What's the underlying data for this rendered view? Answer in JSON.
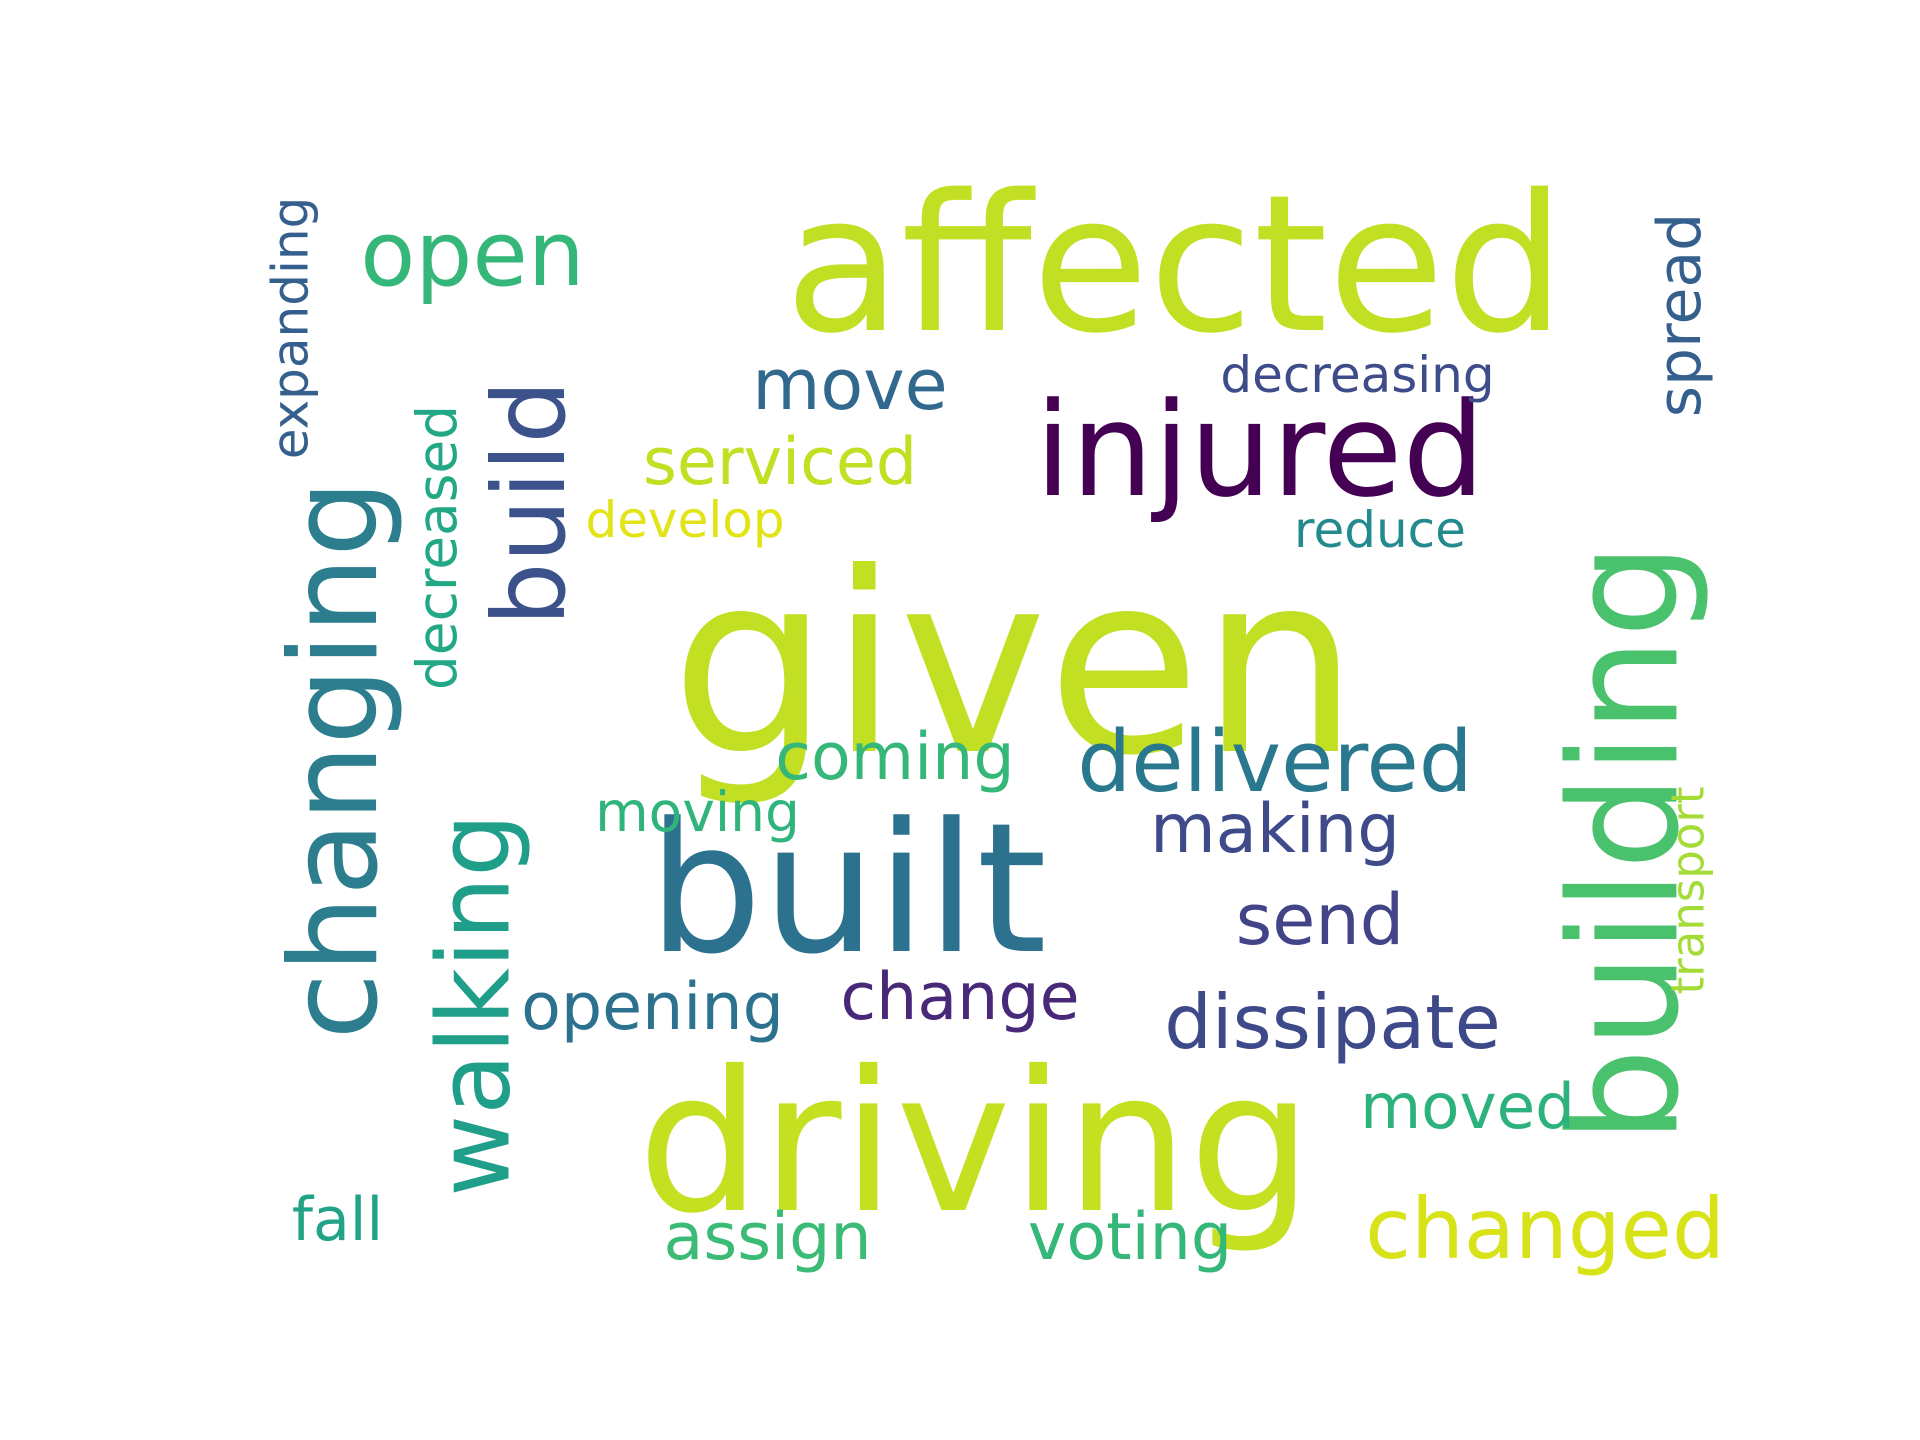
{
  "words": [
    {
      "text": "given",
      "color": "#c2df23"
    },
    {
      "text": "affected",
      "color": "#c2df23"
    },
    {
      "text": "driving",
      "color": "#c5e021"
    },
    {
      "text": "built",
      "color": "#2c728e"
    },
    {
      "text": "injured",
      "color": "#440154"
    },
    {
      "text": "building",
      "color": "#4ac16d"
    },
    {
      "text": "changing",
      "color": "#2c7e8e"
    },
    {
      "text": "walking",
      "color": "#1f9e89"
    },
    {
      "text": "open",
      "color": "#35b779"
    },
    {
      "text": "build",
      "color": "#3b528b"
    },
    {
      "text": "delivered",
      "color": "#2a788e"
    },
    {
      "text": "changed",
      "color": "#d8e219"
    },
    {
      "text": "dissipate",
      "color": "#3e4989"
    },
    {
      "text": "decreased",
      "color": "#22a884"
    },
    {
      "text": "move",
      "color": "#31688e"
    },
    {
      "text": "send",
      "color": "#414487"
    },
    {
      "text": "coming",
      "color": "#35b779"
    },
    {
      "text": "making",
      "color": "#3e4a89"
    },
    {
      "text": "opening",
      "color": "#2c728e"
    },
    {
      "text": "change",
      "color": "#482878"
    },
    {
      "text": "serviced",
      "color": "#c2df23"
    },
    {
      "text": "voting",
      "color": "#35b779"
    },
    {
      "text": "assign",
      "color": "#3bbb75"
    },
    {
      "text": "moved",
      "color": "#2db27d"
    },
    {
      "text": "fall",
      "color": "#20a386"
    },
    {
      "text": "spread",
      "color": "#355f8d"
    },
    {
      "text": "decreasing",
      "color": "#3e4c8a"
    },
    {
      "text": "expanding",
      "color": "#355f8d"
    },
    {
      "text": "transport",
      "color": "#a5db36"
    },
    {
      "text": "reduce",
      "color": "#238a8d"
    },
    {
      "text": "develop",
      "color": "#e2e418"
    },
    {
      "text": "moving",
      "color": "#2fb47c"
    }
  ]
}
